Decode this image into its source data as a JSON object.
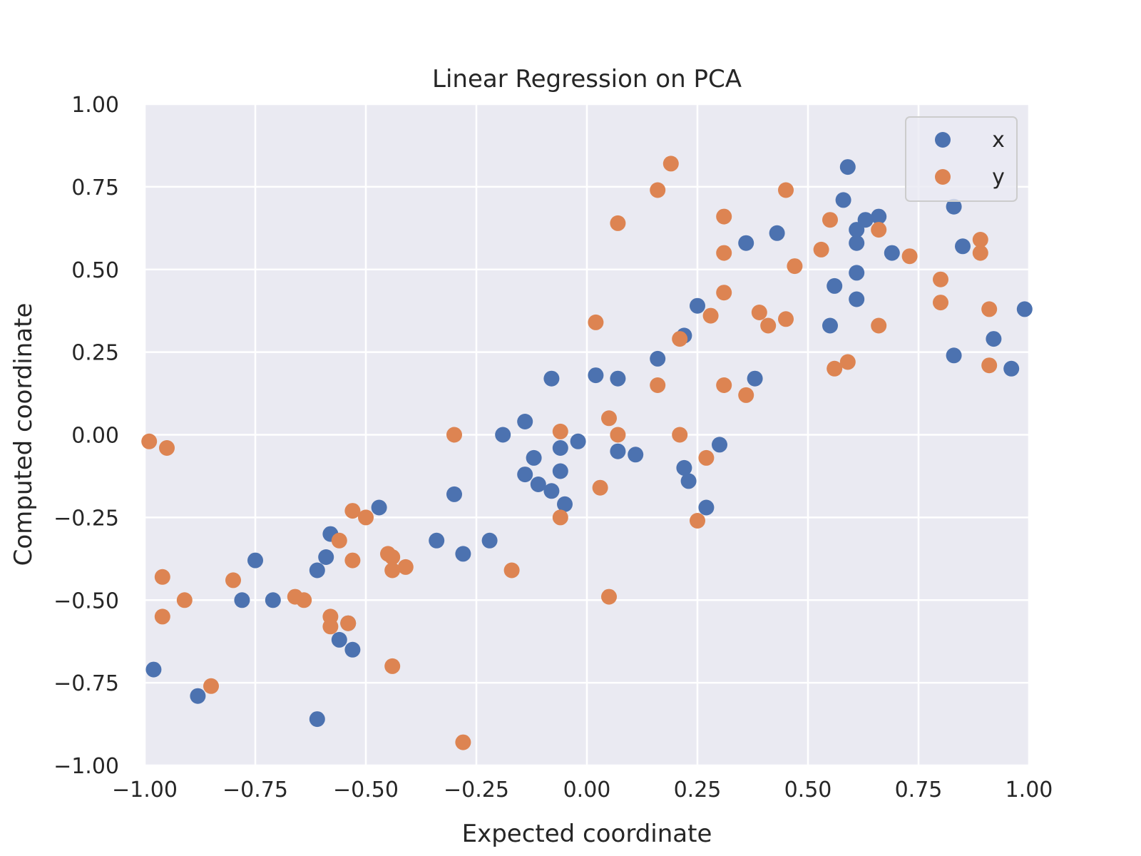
{
  "chart_data": {
    "type": "scatter",
    "title": "Linear Regression on PCA",
    "xlabel": "Expected coordinate",
    "ylabel": "Computed coordinate",
    "xlim": [
      -1.0,
      1.0
    ],
    "ylim": [
      -1.0,
      1.0
    ],
    "xticks": [
      "−1.00",
      "−0.75",
      "−0.50",
      "−0.25",
      "0.00",
      "0.25",
      "0.50",
      "0.75",
      "1.00"
    ],
    "yticks": [
      "−1.00",
      "−0.75",
      "−0.50",
      "−0.25",
      "0.00",
      "0.25",
      "0.50",
      "0.75",
      "1.00"
    ],
    "grid": true,
    "legend_position": "top-right",
    "background": "#eaeaf2",
    "series": [
      {
        "name": "x",
        "color": "#4c72b0",
        "points": [
          [
            -0.98,
            -0.71
          ],
          [
            -0.88,
            -0.79
          ],
          [
            -0.78,
            -0.5
          ],
          [
            -0.75,
            -0.38
          ],
          [
            -0.71,
            -0.5
          ],
          [
            -0.61,
            -0.86
          ],
          [
            -0.61,
            -0.41
          ],
          [
            -0.59,
            -0.37
          ],
          [
            -0.58,
            -0.3
          ],
          [
            -0.56,
            -0.62
          ],
          [
            -0.54,
            -0.57
          ],
          [
            -0.53,
            -0.65
          ],
          [
            -0.47,
            -0.22
          ],
          [
            -0.34,
            -0.32
          ],
          [
            -0.3,
            -0.18
          ],
          [
            -0.28,
            -0.36
          ],
          [
            -0.22,
            -0.32
          ],
          [
            -0.19,
            0.0
          ],
          [
            -0.14,
            0.04
          ],
          [
            -0.14,
            -0.12
          ],
          [
            -0.12,
            -0.07
          ],
          [
            -0.11,
            -0.15
          ],
          [
            -0.08,
            0.17
          ],
          [
            -0.08,
            -0.17
          ],
          [
            -0.06,
            -0.04
          ],
          [
            -0.06,
            -0.11
          ],
          [
            -0.05,
            -0.21
          ],
          [
            -0.02,
            -0.02
          ],
          [
            0.02,
            0.18
          ],
          [
            0.07,
            0.17
          ],
          [
            0.07,
            -0.05
          ],
          [
            0.11,
            -0.06
          ],
          [
            0.16,
            0.23
          ],
          [
            0.22,
            0.3
          ],
          [
            0.22,
            -0.1
          ],
          [
            0.23,
            -0.14
          ],
          [
            0.25,
            0.39
          ],
          [
            0.27,
            -0.22
          ],
          [
            0.3,
            -0.03
          ],
          [
            0.36,
            0.58
          ],
          [
            0.38,
            0.17
          ],
          [
            0.43,
            0.61
          ],
          [
            0.55,
            0.33
          ],
          [
            0.56,
            0.45
          ],
          [
            0.58,
            0.71
          ],
          [
            0.59,
            0.81
          ],
          [
            0.61,
            0.62
          ],
          [
            0.61,
            0.58
          ],
          [
            0.61,
            0.49
          ],
          [
            0.61,
            0.41
          ],
          [
            0.63,
            0.65
          ],
          [
            0.66,
            0.66
          ],
          [
            0.69,
            0.55
          ],
          [
            0.83,
            0.69
          ],
          [
            0.83,
            0.24
          ],
          [
            0.85,
            0.57
          ],
          [
            0.92,
            0.29
          ],
          [
            0.96,
            0.2
          ],
          [
            0.99,
            0.38
          ]
        ]
      },
      {
        "name": "y",
        "color": "#dd8452",
        "points": [
          [
            -0.99,
            -0.02
          ],
          [
            -0.95,
            -0.04
          ],
          [
            -0.96,
            -0.43
          ],
          [
            -0.96,
            -0.55
          ],
          [
            -0.91,
            -0.5
          ],
          [
            -0.85,
            -0.76
          ],
          [
            -0.8,
            -0.44
          ],
          [
            -0.66,
            -0.49
          ],
          [
            -0.64,
            -0.5
          ],
          [
            -0.58,
            -0.55
          ],
          [
            -0.58,
            -0.58
          ],
          [
            -0.56,
            -0.32
          ],
          [
            -0.54,
            -0.57
          ],
          [
            -0.53,
            -0.23
          ],
          [
            -0.53,
            -0.38
          ],
          [
            -0.5,
            -0.25
          ],
          [
            -0.45,
            -0.36
          ],
          [
            -0.44,
            -0.37
          ],
          [
            -0.44,
            -0.41
          ],
          [
            -0.44,
            -0.7
          ],
          [
            -0.41,
            -0.4
          ],
          [
            -0.3,
            0.0
          ],
          [
            -0.28,
            -0.93
          ],
          [
            -0.17,
            -0.41
          ],
          [
            -0.06,
            0.01
          ],
          [
            -0.06,
            -0.25
          ],
          [
            0.02,
            0.34
          ],
          [
            0.03,
            -0.16
          ],
          [
            0.05,
            0.05
          ],
          [
            0.05,
            -0.49
          ],
          [
            0.07,
            0.64
          ],
          [
            0.07,
            0.0
          ],
          [
            0.16,
            0.74
          ],
          [
            0.16,
            0.15
          ],
          [
            0.19,
            0.82
          ],
          [
            0.21,
            0.29
          ],
          [
            0.21,
            0.0
          ],
          [
            0.25,
            -0.26
          ],
          [
            0.27,
            -0.07
          ],
          [
            0.28,
            0.36
          ],
          [
            0.31,
            0.66
          ],
          [
            0.31,
            0.55
          ],
          [
            0.31,
            0.43
          ],
          [
            0.31,
            0.15
          ],
          [
            0.36,
            0.12
          ],
          [
            0.39,
            0.37
          ],
          [
            0.41,
            0.33
          ],
          [
            0.45,
            0.74
          ],
          [
            0.45,
            0.35
          ],
          [
            0.47,
            0.51
          ],
          [
            0.53,
            0.56
          ],
          [
            0.55,
            0.65
          ],
          [
            0.56,
            0.2
          ],
          [
            0.59,
            0.22
          ],
          [
            0.66,
            0.62
          ],
          [
            0.66,
            0.33
          ],
          [
            0.73,
            0.54
          ],
          [
            0.8,
            0.47
          ],
          [
            0.8,
            0.4
          ],
          [
            0.89,
            0.59
          ],
          [
            0.89,
            0.55
          ],
          [
            0.91,
            0.38
          ],
          [
            0.91,
            0.21
          ]
        ]
      }
    ]
  }
}
